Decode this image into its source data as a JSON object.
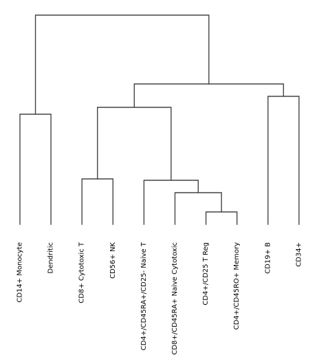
{
  "chart_data": {
    "type": "dendrogram",
    "line_color": "#444444",
    "text_color": "#000000",
    "leaves": [
      "CD14+ Monocyte",
      "Dendritic",
      "CD8+ Cytotoxic T",
      "CD56+ NK",
      "CD4+/CD45RA+/CD25- Naive T",
      "CD8+/CD45RA+ Naive Cytotoxic",
      "CD4+/CD25 T Reg",
      "CD4+/CD45RO+ Memory",
      "CD19+ B",
      "CD34+"
    ],
    "merges": [
      {
        "left": 6,
        "right": 7,
        "height": 0.09
      },
      {
        "left": 5,
        "right": "m0",
        "height": 0.23
      },
      {
        "left": 4,
        "right": "m1",
        "height": 0.32
      },
      {
        "left": 2,
        "right": 3,
        "height": 0.33
      },
      {
        "left": "m3",
        "right": "m2",
        "height": 0.85
      },
      {
        "left": 0,
        "right": 1,
        "height": 0.8
      },
      {
        "left": 8,
        "right": 9,
        "height": 0.93
      },
      {
        "left": "m4",
        "right": "m6",
        "height": 1.02
      },
      {
        "left": "m5",
        "right": "m7",
        "height": 1.52
      }
    ]
  }
}
